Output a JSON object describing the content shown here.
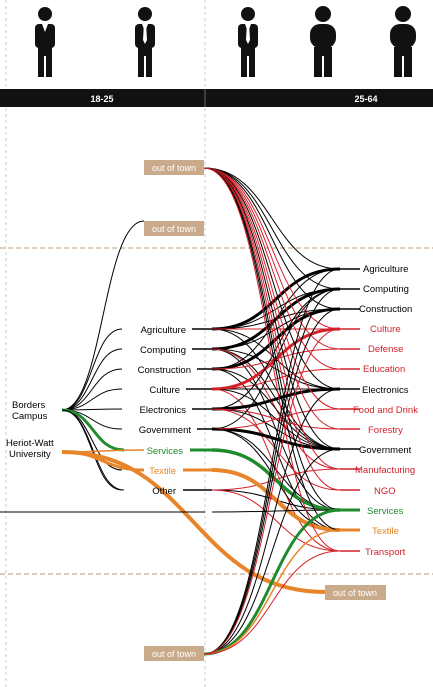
{
  "age_groups": {
    "young": "18-25",
    "adult": "25-64"
  },
  "sources": {
    "borders": [
      "Borders",
      "Campus"
    ],
    "heriot": [
      "Heriot-Watt",
      "University"
    ]
  },
  "out_of_town": "out of town",
  "left_sectors": [
    "Agriculture",
    "Computing",
    "Construction",
    "Culture",
    "Electronics",
    "Government",
    "Services",
    "Textile",
    "Other"
  ],
  "right_sectors": [
    "Agriculture",
    "Computing",
    "Construction",
    "Culture",
    "Defense",
    "Education",
    "Electronics",
    "Food and Drink",
    "Forestry",
    "Government",
    "Manufacturing",
    "NGO",
    "Services",
    "Textile",
    "Transport"
  ],
  "colors": {
    "black": "#000000",
    "red": "#d4202a",
    "green": "#1f8a2e",
    "orange": "#e8852a",
    "box": "#c9ab8b",
    "bar": "#111111",
    "divider": "#b89a7a"
  },
  "icons": [
    "person-slim-tie-icon",
    "person-slim-tie-icon",
    "person-slim-tie-icon",
    "person-heavy-icon",
    "person-heavy-icon"
  ]
}
